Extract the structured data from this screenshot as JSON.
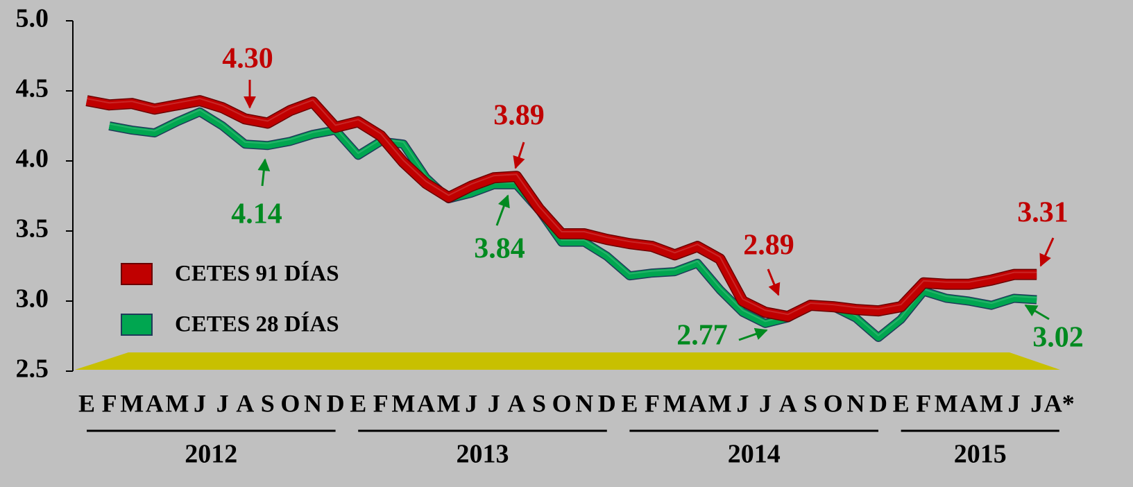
{
  "chart_data": {
    "type": "line",
    "categories": [
      "E",
      "F",
      "M",
      "A",
      "M",
      "J",
      "J",
      "A",
      "S",
      "O",
      "N",
      "D",
      "E",
      "F",
      "M",
      "A",
      "M",
      "J",
      "J",
      "A",
      "S",
      "O",
      "N",
      "D",
      "E",
      "F",
      "M",
      "A",
      "M",
      "J",
      "J",
      "A",
      "S",
      "O",
      "N",
      "D",
      "E",
      "F",
      "M",
      "A",
      "M",
      "J",
      "J",
      "A*"
    ],
    "years": [
      "2012",
      "2013",
      "2014",
      "2015"
    ],
    "series": [
      {
        "name": "CETES 91 DÍAS",
        "color": "#c00000",
        "values": [
          4.43,
          4.4,
          4.41,
          4.37,
          4.4,
          4.43,
          4.38,
          4.3,
          4.27,
          4.36,
          4.42,
          4.24,
          4.28,
          4.18,
          3.99,
          3.84,
          3.74,
          3.82,
          3.88,
          3.89,
          3.66,
          3.48,
          3.48,
          3.44,
          3.41,
          3.39,
          3.33,
          3.39,
          3.3,
          3.0,
          2.92,
          2.89,
          2.97,
          2.96,
          2.94,
          2.93,
          2.96,
          3.13,
          3.12,
          3.12,
          3.15,
          3.19,
          3.19,
          null
        ]
      },
      {
        "name": "CETES 28 DÍAS",
        "color": "#00a650",
        "values": [
          null,
          4.25,
          4.22,
          4.2,
          4.28,
          4.35,
          4.25,
          4.12,
          4.11,
          4.14,
          4.19,
          4.22,
          4.04,
          4.14,
          4.12,
          3.88,
          3.73,
          3.77,
          3.83,
          3.83,
          3.65,
          3.42,
          3.42,
          3.32,
          3.18,
          3.2,
          3.21,
          3.27,
          3.08,
          2.92,
          2.84,
          2.88,
          2.97,
          2.96,
          2.88,
          2.74,
          2.87,
          3.07,
          3.02,
          3.0,
          2.97,
          3.02,
          3.01,
          null
        ]
      }
    ],
    "annotations": [
      {
        "text": "4.30",
        "color": "#c00000"
      },
      {
        "text": "4.14",
        "color": "#008a20"
      },
      {
        "text": "3.89",
        "color": "#c00000"
      },
      {
        "text": "3.84",
        "color": "#008a20"
      },
      {
        "text": "2.89",
        "color": "#c00000"
      },
      {
        "text": "2.77",
        "color": "#008a20"
      },
      {
        "text": "3.31",
        "color": "#c00000"
      },
      {
        "text": "3.02",
        "color": "#008a20"
      }
    ],
    "ylim": [
      2.5,
      5.0
    ],
    "yticks": [
      {
        "value": 2.5,
        "label": "2.5"
      },
      {
        "value": 3.0,
        "label": "3.0"
      },
      {
        "value": 3.5,
        "label": "3.5"
      },
      {
        "value": 4.0,
        "label": "4.0"
      },
      {
        "value": 4.5,
        "label": "4.5"
      },
      {
        "value": 5.0,
        "label": "5.0"
      }
    ]
  }
}
